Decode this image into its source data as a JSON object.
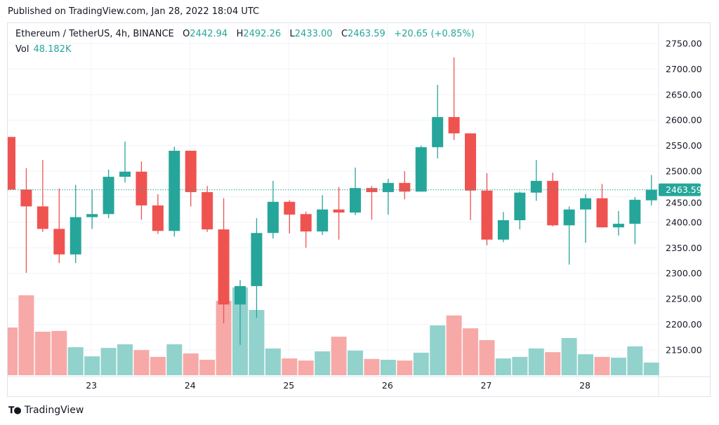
{
  "published": "Published on TradingView.com, Jan 28, 2022 18:04 UTC",
  "legend": {
    "symbol": "Ethereum / TetherUS, 4h, BINANCE",
    "o_label": "O",
    "o": "2442.94",
    "h_label": "H",
    "h": "2492.26",
    "l_label": "L",
    "l": "2433.00",
    "c_label": "C",
    "c": "2463.59",
    "change": "+20.65 (+0.85%)",
    "vol_label": "Vol",
    "vol": "48.182K"
  },
  "footer": {
    "brand": "TradingView"
  },
  "colors": {
    "up": "#26a69a",
    "down": "#ef5350",
    "vol_up": "#92d2cc",
    "vol_down": "#f7a9a7",
    "grid": "#f0f3fa"
  },
  "chart_data": {
    "type": "candlestick",
    "interval": "4h",
    "ylim": [
      2100,
      2780
    ],
    "grid": true,
    "price_ticks": [
      "2750.00",
      "2700.00",
      "2650.00",
      "2600.00",
      "2550.00",
      "2500.00",
      "2450.00",
      "2400.00",
      "2350.00",
      "2300.00",
      "2250.00",
      "2200.00",
      "2150.00"
    ],
    "x_ticks": [
      {
        "label": "23",
        "index": 5
      },
      {
        "label": "24",
        "index": 11
      },
      {
        "label": "25",
        "index": 17
      },
      {
        "label": "26",
        "index": 23
      },
      {
        "label": "27",
        "index": 29
      },
      {
        "label": "28",
        "index": 35
      }
    ],
    "last_price_label": "2463.59",
    "open": [
      2567,
      2464,
      2431,
      2387,
      2337,
      2410,
      2416,
      2489,
      2499,
      2433,
      2383,
      2540,
      2459,
      2386,
      2239,
      2275,
      2379,
      2440,
      2416,
      2382,
      2425,
      2419,
      2467,
      2459,
      2477,
      2460,
      2547,
      2606,
      2574,
      2462,
      2366,
      2404,
      2458,
      2481,
      2394,
      2425,
      2447,
      2390,
      2397,
      2442.94
    ],
    "high": [
      2567,
      2506,
      2522,
      2466,
      2473,
      2464,
      2503,
      2558,
      2519,
      2455,
      2548,
      2540,
      2471,
      2447,
      2287,
      2408,
      2481,
      2443,
      2421,
      2453,
      2469,
      2507,
      2471,
      2485,
      2500,
      2550,
      2669,
      2723,
      2574,
      2496,
      2420,
      2460,
      2522,
      2497,
      2431,
      2455,
      2475,
      2422,
      2449,
      2492.26
    ],
    "low": [
      2464,
      2301,
      2381,
      2320,
      2320,
      2387,
      2408,
      2478,
      2405,
      2377,
      2372,
      2431,
      2381,
      2202,
      2160,
      2213,
      2368,
      2378,
      2350,
      2375,
      2366,
      2414,
      2405,
      2415,
      2445,
      2460,
      2525,
      2561,
      2404,
      2355,
      2361,
      2386,
      2442,
      2392,
      2317,
      2360,
      2390,
      2374,
      2357,
      2433.0
    ],
    "close": [
      2464,
      2431,
      2387,
      2337,
      2410,
      2416,
      2489,
      2499,
      2433,
      2383,
      2540,
      2459,
      2386,
      2239,
      2275,
      2379,
      2440,
      2415,
      2382,
      2425,
      2419,
      2467,
      2459,
      2477,
      2460,
      2547,
      2606,
      2574,
      2462,
      2366,
      2404,
      2458,
      2481,
      2394,
      2425,
      2447,
      2390,
      2397,
      2444,
      2463.59
    ],
    "volume_k": [
      182,
      305,
      166,
      169,
      107,
      72,
      104,
      118,
      96,
      70,
      118,
      83,
      59,
      284,
      335,
      249,
      102,
      64,
      56,
      91,
      147,
      94,
      62,
      59,
      56,
      86,
      190,
      228,
      179,
      134,
      64,
      70,
      102,
      88,
      142,
      80,
      70,
      67,
      110,
      48.182
    ]
  }
}
